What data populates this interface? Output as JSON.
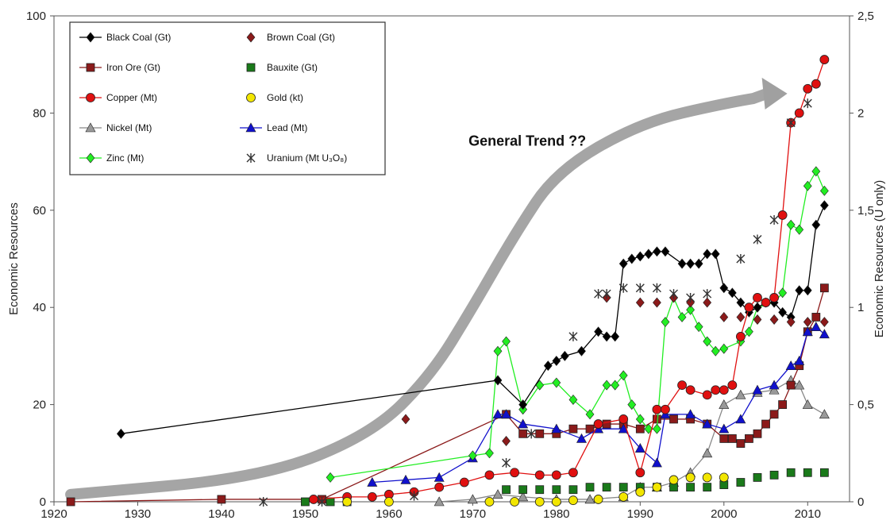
{
  "chart_data": {
    "type": "scatter",
    "title": "",
    "ylabel": "Economic Resources",
    "y2label": "Economic Resources (U only)",
    "xlabel": "",
    "xlim": [
      1920,
      2015
    ],
    "ylim": [
      0,
      100
    ],
    "y2lim": [
      0,
      2.5
    ],
    "xticks": [
      "1920",
      "1930",
      "1940",
      "1950",
      "1960",
      "1970",
      "1980",
      "1990",
      "2000",
      "2010"
    ],
    "yticks": [
      "0",
      "20",
      "40",
      "60",
      "80",
      "100"
    ],
    "y2ticks": [
      "0",
      "0,5",
      "1",
      "1,5",
      "2",
      "2,5"
    ],
    "legend_position": "top-left",
    "annotation": {
      "text": "General Trend ??",
      "arrow_path": [
        [
          1922,
          1.5
        ],
        [
          1945,
          5
        ],
        [
          1958,
          14
        ],
        [
          1965,
          26
        ],
        [
          1970,
          40
        ],
        [
          1975,
          55
        ],
        [
          1980,
          68
        ],
        [
          1990,
          78
        ],
        [
          2000,
          82
        ],
        [
          2007,
          84
        ]
      ]
    },
    "series": [
      {
        "name": "Black Coal (Gt)",
        "color": "#000000",
        "marker": "diamond",
        "line": true,
        "axis": "left",
        "x": [
          1928,
          1973,
          1976,
          1979,
          1980,
          1981,
          1983,
          1985,
          1986,
          1987,
          1988,
          1989,
          1990,
          1991,
          1992,
          1993,
          1995,
          1996,
          1997,
          1998,
          1999,
          2000,
          2001,
          2002,
          2003,
          2004,
          2005,
          2006,
          2007,
          2008,
          2009,
          2010,
          2011,
          2012
        ],
        "y": [
          14,
          25,
          20,
          28,
          29,
          30,
          31,
          35,
          34,
          34,
          49,
          50,
          50.5,
          51,
          51.5,
          51.5,
          49,
          49,
          49,
          51,
          51,
          44,
          43,
          41,
          39,
          40,
          41,
          41,
          39,
          38,
          43.5,
          43.5,
          57,
          61
        ]
      },
      {
        "name": "Brown Coal (Gt)",
        "color": "#8b1a1a",
        "marker": "diamond",
        "line": false,
        "axis": "left",
        "x": [
          1962,
          1974,
          1986,
          1990,
          1992,
          1994,
          1996,
          1998,
          2000,
          2002,
          2004,
          2006,
          2008,
          2010,
          2012
        ],
        "y": [
          17,
          12.5,
          42,
          41,
          41,
          42,
          41,
          41,
          38,
          38,
          37.5,
          37.5,
          37,
          37,
          37
        ]
      },
      {
        "name": "Iron Ore (Gt)",
        "color": "#8b1a1a",
        "marker": "square",
        "line": true,
        "axis": "left",
        "x": [
          1922,
          1940,
          1952,
          1974,
          1976,
          1978,
          1980,
          1982,
          1984,
          1986,
          1988,
          1990,
          1992,
          1994,
          1996,
          1998,
          2000,
          2001,
          2002,
          2003,
          2004,
          2005,
          2006,
          2007,
          2008,
          2009,
          2010,
          2011,
          2012
        ],
        "y": [
          0,
          0.5,
          0.5,
          18,
          14,
          14,
          14,
          15,
          15,
          16,
          16,
          15,
          17,
          17,
          17,
          16,
          13,
          13,
          12,
          13,
          14,
          16,
          18,
          20,
          24,
          28,
          35,
          38,
          44
        ]
      },
      {
        "name": "Bauxite (Gt)",
        "color": "#1a7a1a",
        "marker": "square",
        "line": false,
        "axis": "left",
        "x": [
          1950,
          1953,
          1955,
          1974,
          1976,
          1978,
          1980,
          1982,
          1984,
          1986,
          1988,
          1990,
          1992,
          1994,
          1996,
          1998,
          2000,
          2002,
          2004,
          2006,
          2008,
          2010,
          2012
        ],
        "y": [
          0,
          0,
          0,
          2.5,
          2.5,
          2.5,
          2.5,
          2.5,
          3,
          3,
          3,
          3,
          3,
          3,
          3,
          3,
          3.5,
          4,
          5,
          5.5,
          6,
          6,
          6
        ]
      },
      {
        "name": "Copper (Mt)",
        "color": "#e01010",
        "marker": "circle",
        "line": true,
        "axis": "left",
        "x": [
          1951,
          1955,
          1958,
          1960,
          1963,
          1966,
          1969,
          1972,
          1975,
          1978,
          1980,
          1982,
          1985,
          1988,
          1990,
          1992,
          1993,
          1995,
          1996,
          1998,
          1999,
          2000,
          2001,
          2002,
          2003,
          2004,
          2005,
          2006,
          2007,
          2008,
          2009,
          2010,
          2011,
          2012
        ],
        "y": [
          0.5,
          1,
          1,
          1.5,
          2,
          3,
          4,
          5.5,
          6,
          5.5,
          5.5,
          6,
          16,
          17,
          6,
          19,
          19,
          24,
          23,
          22,
          23,
          23,
          24,
          34,
          40,
          42,
          41,
          42,
          59,
          78,
          80,
          85,
          86,
          91
        ]
      },
      {
        "name": "Gold (kt)",
        "color": "#f2e600",
        "marker": "circle",
        "line": false,
        "axis": "left",
        "x": [
          1955,
          1960,
          1972,
          1975,
          1978,
          1980,
          1982,
          1985,
          1988,
          1990,
          1992,
          1994,
          1996,
          1998,
          2000
        ],
        "y": [
          0,
          0,
          0,
          0,
          0,
          0,
          0.3,
          0.5,
          1,
          2,
          3,
          4.5,
          5,
          5,
          5
        ]
      },
      {
        "name": "Nickel (Mt)",
        "color": "#999999",
        "marker": "triangle",
        "line": true,
        "axis": "left",
        "x": [
          1966,
          1970,
          1973,
          1976,
          1980,
          1984,
          1988,
          1990,
          1992,
          1994,
          1996,
          1998,
          2000,
          2002,
          2004,
          2006,
          2008,
          2009,
          2010,
          2012
        ],
        "y": [
          0,
          0.5,
          1.5,
          1,
          0.5,
          0.5,
          1,
          3,
          3,
          4,
          6,
          10,
          20,
          22,
          22.5,
          23,
          25,
          24,
          20,
          18
        ]
      },
      {
        "name": "Lead (Mt)",
        "color": "#1010cc",
        "marker": "triangle",
        "line": true,
        "axis": "left",
        "x": [
          1958,
          1962,
          1966,
          1970,
          1973,
          1974,
          1976,
          1980,
          1983,
          1985,
          1988,
          1990,
          1992,
          1993,
          1996,
          1998,
          2000,
          2002,
          2004,
          2006,
          2008,
          2009,
          2010,
          2011,
          2012
        ],
        "y": [
          4,
          4.5,
          5,
          9,
          18,
          18,
          16,
          15,
          13,
          15,
          15,
          11,
          8,
          18,
          18,
          16,
          15,
          17,
          23,
          24,
          28,
          29,
          35,
          36,
          34.5
        ]
      },
      {
        "name": "Zinc (Mt)",
        "color": "#22ee22",
        "marker": "diamond",
        "line": true,
        "axis": "left",
        "x": [
          1953,
          1970,
          1972,
          1973,
          1974,
          1976,
          1978,
          1980,
          1982,
          1984,
          1986,
          1987,
          1988,
          1989,
          1990,
          1991,
          1992,
          1993,
          1994,
          1995,
          1996,
          1997,
          1998,
          1999,
          2000,
          2002,
          2003,
          2004,
          2006,
          2007,
          2008,
          2009,
          2010,
          2011,
          2012
        ],
        "y": [
          5,
          9.5,
          10,
          31,
          33,
          19,
          24,
          24.5,
          21,
          18,
          24,
          24,
          26,
          20,
          17,
          15,
          15,
          37,
          42,
          38,
          39.5,
          36,
          33,
          31,
          31.5,
          33,
          35,
          40,
          41,
          43,
          57,
          56,
          65,
          68,
          64
        ]
      },
      {
        "name": "Uranium (Mt U3O8)",
        "color": "#333333",
        "marker": "star",
        "line": false,
        "axis": "right",
        "x": [
          1945,
          1952,
          1963,
          1974,
          1977,
          1982,
          1985,
          1986,
          1988,
          1990,
          1992,
          1994,
          1996,
          1998,
          2002,
          2004,
          2006,
          2008,
          2010
        ],
        "y": [
          0,
          0,
          0.03,
          0.2,
          0.35,
          0.85,
          1.07,
          1.07,
          1.1,
          1.1,
          1.1,
          1.07,
          1.05,
          1.07,
          1.25,
          1.35,
          1.45,
          1.95,
          2.05
        ]
      }
    ]
  },
  "legend_display": [
    {
      "label": "Black Coal (Gt)"
    },
    {
      "label": "Brown Coal (Gt)"
    },
    {
      "label": "Iron Ore (Gt)"
    },
    {
      "label": "Bauxite (Gt)"
    },
    {
      "label": "Copper (Mt)"
    },
    {
      "label": "Gold (kt)"
    },
    {
      "label": "Nickel (Mt)"
    },
    {
      "label": "Lead (Mt)"
    },
    {
      "label": "Zinc (Mt)"
    },
    {
      "label": "Uranium (Mt U₃O₈)"
    }
  ]
}
